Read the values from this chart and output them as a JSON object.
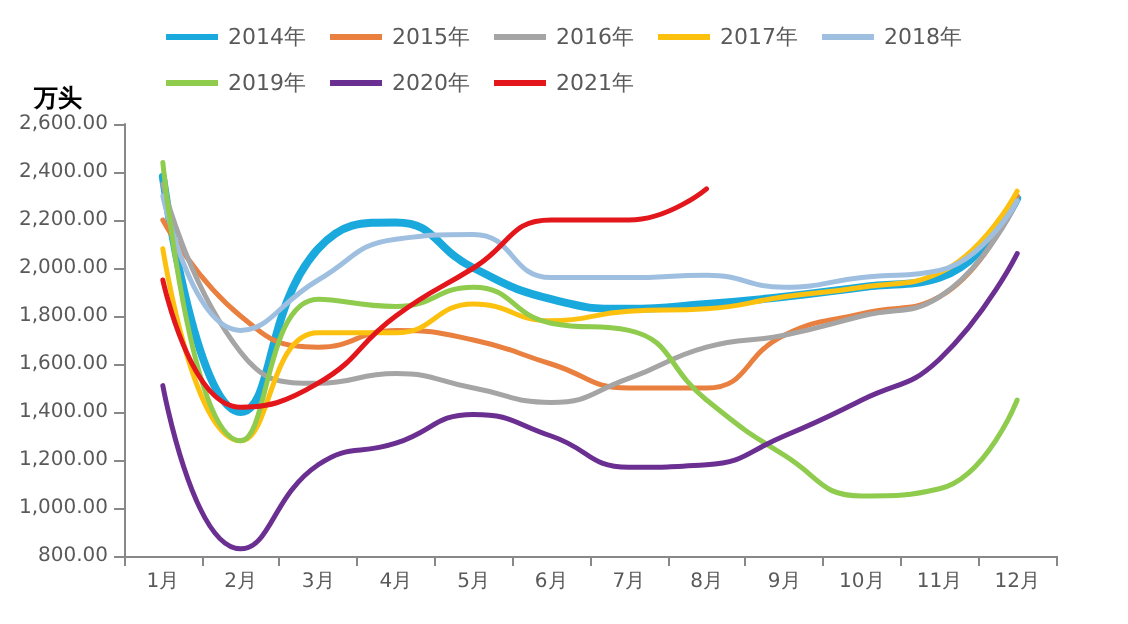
{
  "chart_data": {
    "type": "line",
    "ylabel": "万头",
    "categories": [
      "1月",
      "2月",
      "3月",
      "4月",
      "5月",
      "6月",
      "7月",
      "8月",
      "9月",
      "10月",
      "11月",
      "12月"
    ],
    "series": [
      {
        "name": "2014年",
        "color": "#1aa9dc",
        "values": [
          2380,
          1400,
          2080,
          2190,
          2000,
          1870,
          1830,
          1850,
          1880,
          1920,
          1960,
          2290
        ]
      },
      {
        "name": "2015年",
        "color": "#e9803f",
        "values": [
          2200,
          1800,
          1670,
          1740,
          1700,
          1600,
          1500,
          1500,
          1720,
          1810,
          1880,
          2300
        ]
      },
      {
        "name": "2016年",
        "color": "#a5a5a5",
        "values": [
          2350,
          1650,
          1520,
          1560,
          1500,
          1440,
          1540,
          1670,
          1720,
          1800,
          1880,
          2280
        ]
      },
      {
        "name": "2017年",
        "color": "#fcc10f",
        "values": [
          2080,
          1280,
          1730,
          1730,
          1850,
          1780,
          1820,
          1830,
          1880,
          1920,
          1980,
          2320
        ]
      },
      {
        "name": "2018年",
        "color": "#9fbfe1",
        "values": [
          2300,
          1740,
          1950,
          2120,
          2140,
          1960,
          1960,
          1970,
          1920,
          1960,
          1990,
          2280
        ]
      },
      {
        "name": "2019年",
        "color": "#8fcb4d",
        "values": [
          2440,
          1280,
          1870,
          1840,
          1920,
          1770,
          1740,
          1450,
          1220,
          1050,
          1080,
          1450
        ]
      },
      {
        "name": "2020年",
        "color": "#6a2f91",
        "values": [
          1510,
          830,
          1180,
          1270,
          1390,
          1300,
          1170,
          1180,
          1300,
          1450,
          1620,
          2060
        ]
      },
      {
        "name": "2021年",
        "color": "#e3161c",
        "values": [
          1950,
          1420,
          1520,
          1800,
          2000,
          2200,
          2200,
          2330,
          null,
          null,
          null,
          null
        ]
      }
    ],
    "ylim": [
      800,
      2600
    ],
    "yticks": [
      {
        "value": 800,
        "label": "800.00"
      },
      {
        "value": 1000,
        "label": "1,000.00"
      },
      {
        "value": 1200,
        "label": "1,200.00"
      },
      {
        "value": 1400,
        "label": "1,400.00"
      },
      {
        "value": 1600,
        "label": "1,600.00"
      },
      {
        "value": 1800,
        "label": "1,800.00"
      },
      {
        "value": 2000,
        "label": "2,000.00"
      },
      {
        "value": 2200,
        "label": "2,200.00"
      },
      {
        "value": 2400,
        "label": "2,400.00"
      },
      {
        "value": 2600,
        "label": "2,600.00"
      }
    ],
    "grid": false,
    "legend": "top",
    "marker": "none",
    "line_style": "solid"
  }
}
